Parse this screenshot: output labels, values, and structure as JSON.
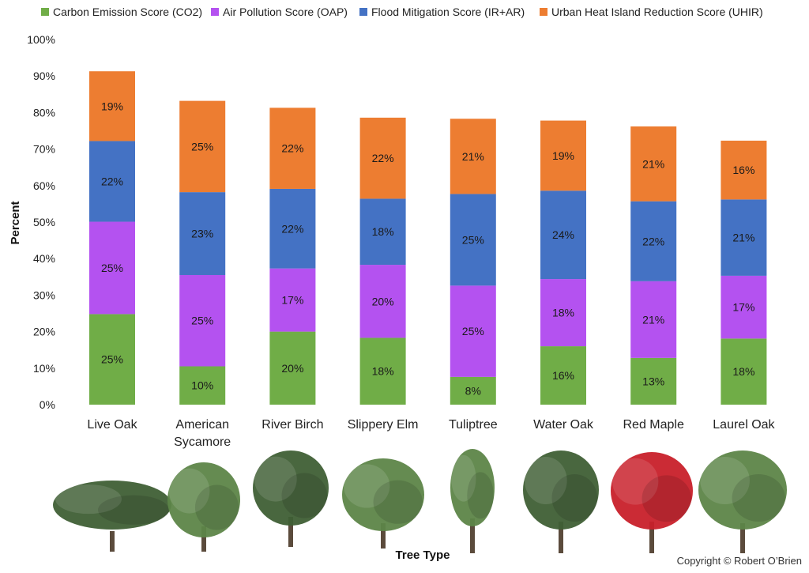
{
  "colors": {
    "co2": "#70ad47",
    "oap": "#b452f0",
    "flood": "#4472c4",
    "uhir": "#ed7d31",
    "foliage_dark": "#3f5f35",
    "foliage_mid": "#5d8548",
    "foliage_red": "#c8202a",
    "trunk": "#5b4b3c"
  },
  "chart_data": {
    "type": "bar",
    "stacked": true,
    "title": "",
    "xlabel": "Tree Type",
    "ylabel": "Percent",
    "ylim": [
      0,
      100
    ],
    "yticks": [
      "0%",
      "10%",
      "20%",
      "30%",
      "40%",
      "50%",
      "60%",
      "70%",
      "80%",
      "90%",
      "100%"
    ],
    "categories": [
      [
        "Live Oak"
      ],
      [
        "American",
        "Sycamore"
      ],
      [
        "River Birch"
      ],
      [
        "Slippery Elm"
      ],
      [
        "Tuliptree"
      ],
      [
        "Water Oak"
      ],
      [
        "Red Maple"
      ],
      [
        "Laurel Oak"
      ]
    ],
    "series": [
      {
        "key": "co2",
        "name": "Carbon Emission Score (CO2)",
        "values": [
          24.8,
          10.5,
          20.0,
          18.3,
          7.6,
          16.0,
          12.8,
          18.1
        ],
        "labels": [
          "25%",
          "10%",
          "20%",
          "18%",
          "8%",
          "16%",
          "13%",
          "18%"
        ]
      },
      {
        "key": "oap",
        "name": "Air Pollution Score (OAP)",
        "values": [
          25.3,
          25.0,
          17.3,
          20.0,
          25.0,
          18.4,
          21.0,
          17.2
        ],
        "labels": [
          "25%",
          "25%",
          "17%",
          "20%",
          "25%",
          "18%",
          "21%",
          "17%"
        ]
      },
      {
        "key": "flood",
        "name": "Flood Mitigation Score (IR+AR)",
        "values": [
          22.1,
          22.7,
          21.8,
          18.1,
          25.1,
          24.2,
          21.9,
          20.9
        ],
        "labels": [
          "22%",
          "23%",
          "22%",
          "18%",
          "25%",
          "24%",
          "22%",
          "21%"
        ]
      },
      {
        "key": "uhir",
        "name": "Urban Heat Island Reduction Score (UHIR)",
        "values": [
          19.1,
          25.0,
          22.2,
          22.2,
          20.6,
          19.2,
          20.5,
          16.1
        ],
        "labels": [
          "19%",
          "25%",
          "22%",
          "22%",
          "21%",
          "19%",
          "21%",
          "16%"
        ]
      }
    ],
    "legend_position": "top",
    "grid": false
  },
  "trees": [
    {
      "name": "Live Oak",
      "icon": "live-oak-tree-icon",
      "tone": "dark"
    },
    {
      "name": "American Sycamore",
      "icon": "american-sycamore-tree-icon",
      "tone": "mid"
    },
    {
      "name": "River Birch",
      "icon": "river-birch-tree-icon",
      "tone": "dark"
    },
    {
      "name": "Slippery Elm",
      "icon": "slippery-elm-tree-icon",
      "tone": "mid"
    },
    {
      "name": "Tuliptree",
      "icon": "tuliptree-tree-icon",
      "tone": "mid"
    },
    {
      "name": "Water Oak",
      "icon": "water-oak-tree-icon",
      "tone": "dark"
    },
    {
      "name": "Red Maple",
      "icon": "red-maple-tree-icon",
      "tone": "red"
    },
    {
      "name": "Laurel Oak",
      "icon": "laurel-oak-tree-icon",
      "tone": "mid"
    }
  ],
  "copyright": "Copyright © Robert O’Brien"
}
